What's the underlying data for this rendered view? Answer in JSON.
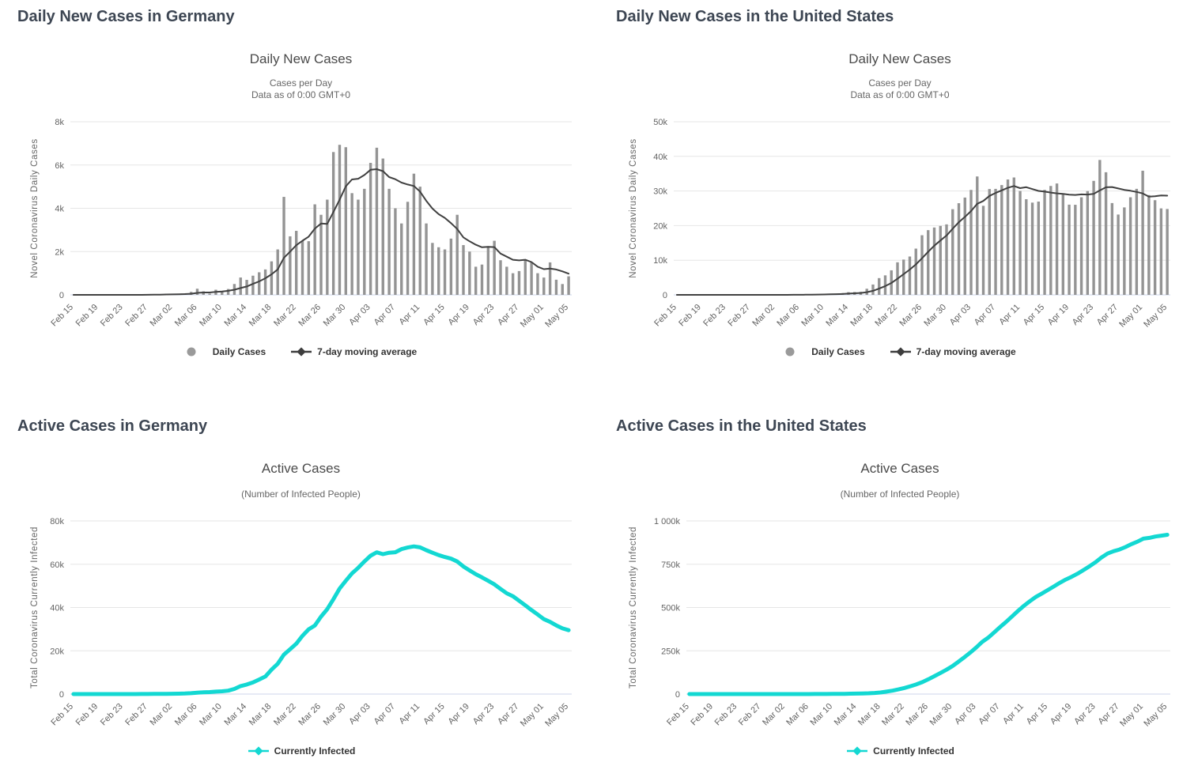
{
  "colors": {
    "heading": "#3d4653",
    "chart_title": "#4a4a4a",
    "subtitle": "#666666",
    "axis_title": "#666666",
    "tick_label": "#636363",
    "gridline": "#e6e6e6",
    "axis_line": "#ccd6eb",
    "bar": "#949494",
    "moving_average": "#404040",
    "active_line": "#13d8d2",
    "legend_text": "#333333",
    "daily_cases_marker": "#9a9a9a"
  },
  "dates": [
    "Feb 15",
    "Feb 16",
    "Feb 17",
    "Feb 18",
    "Feb 19",
    "Feb 20",
    "Feb 21",
    "Feb 22",
    "Feb 23",
    "Feb 24",
    "Feb 25",
    "Feb 26",
    "Feb 27",
    "Feb 28",
    "Feb 29",
    "Mar 01",
    "Mar 02",
    "Mar 03",
    "Mar 04",
    "Mar 05",
    "Mar 06",
    "Mar 07",
    "Mar 08",
    "Mar 09",
    "Mar 10",
    "Mar 11",
    "Mar 12",
    "Mar 13",
    "Mar 14",
    "Mar 15",
    "Mar 16",
    "Mar 17",
    "Mar 18",
    "Mar 19",
    "Mar 20",
    "Mar 21",
    "Mar 22",
    "Mar 23",
    "Mar 24",
    "Mar 25",
    "Mar 26",
    "Mar 27",
    "Mar 28",
    "Mar 29",
    "Mar 30",
    "Mar 31",
    "Apr 01",
    "Apr 02",
    "Apr 03",
    "Apr 04",
    "Apr 05",
    "Apr 06",
    "Apr 07",
    "Apr 08",
    "Apr 09",
    "Apr 10",
    "Apr 11",
    "Apr 12",
    "Apr 13",
    "Apr 14",
    "Apr 15",
    "Apr 16",
    "Apr 17",
    "Apr 18",
    "Apr 19",
    "Apr 20",
    "Apr 21",
    "Apr 22",
    "Apr 23",
    "Apr 24",
    "Apr 25",
    "Apr 26",
    "Apr 27",
    "Apr 28",
    "Apr 29",
    "Apr 30",
    "May 01",
    "May 02",
    "May 03",
    "May 04",
    "May 05"
  ],
  "chart_data": [
    {
      "id": "daily-new-cases-germany",
      "type": "bar",
      "heading": "Daily New Cases in Germany",
      "title": "Daily New Cases",
      "subtitle1": "Cases per Day",
      "subtitle2": "Data as of 0:00 GMT+0",
      "ylabel": "Novel Coronavirus Daily Cases",
      "ylim": [
        0,
        8000
      ],
      "yticks": [
        [
          0,
          "0"
        ],
        [
          2000,
          "2k"
        ],
        [
          4000,
          "4k"
        ],
        [
          6000,
          "6k"
        ],
        [
          8000,
          "8k"
        ]
      ],
      "categories": "dates",
      "x_tick_step": 4,
      "grid": true,
      "legend_position": "bottom",
      "series": [
        {
          "name": "Daily Cases",
          "type": "bar",
          "color": "#949494",
          "values": [
            0,
            0,
            0,
            0,
            0,
            0,
            0,
            0,
            0,
            0,
            1,
            9,
            26,
            10,
            32,
            51,
            28,
            39,
            66,
            138,
            284,
            163,
            55,
            237,
            157,
            271,
            502,
            802,
            693,
            886,
            1043,
            1174,
            1548,
            2100,
            4528,
            2705,
            2958,
            2500,
            2480,
            4183,
            3700,
            4400,
            6600,
            6933,
            6824,
            4700,
            4400,
            4900,
            6100,
            6800,
            6300,
            4900,
            4000,
            3300,
            4300,
            5600,
            5000,
            3300,
            2400,
            2200,
            2100,
            2600,
            3700,
            2300,
            2000,
            1300,
            1400,
            2250,
            2500,
            1600,
            1300,
            1000,
            1100,
            1600,
            1500,
            1000,
            800,
            1500,
            700,
            500,
            855
          ]
        },
        {
          "name": "7-day moving average",
          "type": "line",
          "color": "#404040",
          "width": 2,
          "derived": "7day_moving_average",
          "data_name": "moving-average-line"
        }
      ],
      "legend": [
        {
          "label": "Daily Cases",
          "marker": "circle",
          "color": "#9a9a9a"
        },
        {
          "label": "7-day moving average",
          "marker": "line-diamond",
          "color": "#3d3d3d"
        }
      ]
    },
    {
      "id": "daily-new-cases-united-states",
      "type": "bar",
      "heading": "Daily New Cases in the United States",
      "title": "Daily New Cases",
      "subtitle1": "Cases per Day",
      "subtitle2": "Data as of 0:00 GMT+0",
      "ylabel": "Novel Coronavirus Daily Cases",
      "ylim": [
        0,
        50000
      ],
      "yticks": [
        [
          0,
          "0"
        ],
        [
          10000,
          "10k"
        ],
        [
          20000,
          "20k"
        ],
        [
          30000,
          "30k"
        ],
        [
          40000,
          "40k"
        ],
        [
          50000,
          "50k"
        ]
      ],
      "categories": "dates",
      "x_tick_step": 4,
      "grid": true,
      "legend_position": "bottom",
      "series": [
        {
          "name": "Daily Cases",
          "type": "bar",
          "color": "#949494",
          "values": [
            0,
            0,
            0,
            0,
            0,
            0,
            0,
            1,
            0,
            0,
            0,
            0,
            6,
            1,
            8,
            3,
            20,
            14,
            22,
            34,
            105,
            95,
            121,
            200,
            271,
            287,
            351,
            511,
            777,
            823,
            887,
            1766,
            2988,
            4835,
            5632,
            7087,
            9400,
            10189,
            11075,
            13355,
            17224,
            18691,
            19452,
            19913,
            20353,
            24742,
            26473,
            28103,
            30306,
            34196,
            25717,
            30561,
            30613,
            31709,
            33323,
            33901,
            30003,
            27620,
            26641,
            26945,
            30317,
            31451,
            32165,
            29002,
            26054,
            26013,
            28180,
            29973,
            32922,
            38958,
            35413,
            26509,
            23196,
            25258,
            28186,
            30619,
            35853,
            28813,
            27348,
            24972,
            24798
          ]
        },
        {
          "name": "7-day moving average",
          "type": "line",
          "color": "#404040",
          "width": 2,
          "derived": "7day_moving_average",
          "data_name": "moving-average-line"
        }
      ],
      "legend": [
        {
          "label": "Daily Cases",
          "marker": "circle",
          "color": "#9a9a9a"
        },
        {
          "label": "7-day moving average",
          "marker": "line-diamond",
          "color": "#3d3d3d"
        }
      ]
    },
    {
      "id": "active-cases-germany",
      "type": "line",
      "heading": "Active Cases in Germany",
      "title": "Active Cases",
      "subtitle1": "(Number of Infected People)",
      "ylabel": "Total Coronavirus Currently Infected",
      "ylim": [
        0,
        80000
      ],
      "yticks": [
        [
          0,
          "0"
        ],
        [
          20000,
          "20k"
        ],
        [
          40000,
          "40k"
        ],
        [
          60000,
          "60k"
        ],
        [
          80000,
          "80k"
        ]
      ],
      "categories": "dates",
      "x_tick_step": 4,
      "grid": true,
      "legend_position": "bottom",
      "series": [
        {
          "name": "Currently Infected",
          "type": "line",
          "color": "#13d8d2",
          "width": 5,
          "data_name": "currently-infected-line",
          "values": [
            16,
            16,
            16,
            16,
            16,
            16,
            16,
            16,
            16,
            16,
            17,
            26,
            52,
            60,
            90,
            117,
            150,
            188,
            262,
            400,
            670,
            800,
            902,
            1139,
            1296,
            1567,
            2369,
            3675,
            4419,
            5355,
            6727,
            8105,
            11296,
            13999,
            18221,
            20734,
            23278,
            26911,
            29909,
            31690,
            35781,
            39235,
            43871,
            48781,
            52351,
            55748,
            58349,
            61247,
            63917,
            65491,
            64647,
            65309,
            65522,
            66995,
            67711,
            68248,
            67789,
            66501,
            65309,
            64224,
            63355,
            62578,
            61247,
            58956,
            57119,
            55364,
            53931,
            52341,
            50703,
            48572,
            46575,
            45229,
            43093,
            40995,
            38825,
            36731,
            34637,
            33342,
            31753,
            30374,
            29500
          ]
        }
      ],
      "legend": [
        {
          "label": "Currently Infected",
          "marker": "line-diamond",
          "color": "#13d8d2"
        }
      ]
    },
    {
      "id": "active-cases-united-states",
      "type": "line",
      "heading": "Active Cases in the United States",
      "title": "Active Cases",
      "subtitle1": "(Number of Infected People)",
      "ylabel": "Total Coronavirus Currently Infected",
      "ylim": [
        0,
        1000000
      ],
      "yticks": [
        [
          0,
          "0"
        ],
        [
          250000,
          "250k"
        ],
        [
          500000,
          "500k"
        ],
        [
          750000,
          "750k"
        ],
        [
          1000000,
          "1 000k"
        ]
      ],
      "categories": "dates",
      "x_tick_step": 4,
      "grid": true,
      "legend_position": "bottom",
      "series": [
        {
          "name": "Currently Infected",
          "type": "line",
          "color": "#13d8d2",
          "width": 5,
          "data_name": "currently-infected-line",
          "values": [
            13,
            13,
            13,
            13,
            13,
            13,
            13,
            14,
            14,
            14,
            14,
            14,
            20,
            21,
            29,
            32,
            52,
            66,
            88,
            122,
            227,
            322,
            443,
            643,
            914,
            1201,
            1552,
            2063,
            2840,
            3663,
            4530,
            6296,
            9285,
            14106,
            19616,
            26747,
            35225,
            45057,
            55945,
            69176,
            85435,
            103321,
            121420,
            140362,
            160838,
            185691,
            211936,
            239279,
            268441,
            301101,
            325651,
            355874,
            386534,
            416417,
            448338,
            479906,
            509914,
            536541,
            561159,
            580619,
            600755,
            621421,
            642374,
            661738,
            677544,
            695983,
            716668,
            738792,
            762259,
            789685,
            811701,
            824902,
            835306,
            849439,
            866043,
            880254,
            897577,
            902400,
            909949,
            915121,
            920061
          ]
        }
      ],
      "legend": [
        {
          "label": "Currently Infected",
          "marker": "line-diamond",
          "color": "#13d8d2"
        }
      ]
    }
  ]
}
